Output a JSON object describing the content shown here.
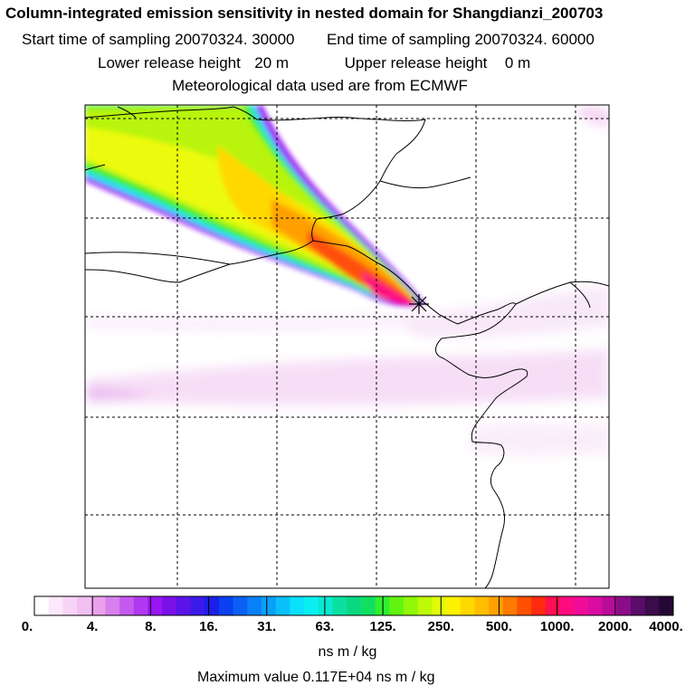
{
  "header": {
    "title": "Column-integrated emission sensitivity in nested domain for Shangdianzi_200703",
    "start_label": "Start time of sampling",
    "start_value": "20070324. 30000",
    "end_label": "End time of sampling",
    "end_value": "20070324. 60000",
    "lower_label": "Lower release height",
    "lower_value": "20 m",
    "upper_label": "Upper release height",
    "upper_value": "0 m",
    "met_line": "Meteorological data used are from ECMWF"
  },
  "colorbar": {
    "ticks": [
      "0.",
      "4.",
      "8.",
      "16.",
      "31.",
      "63.",
      "125.",
      "250.",
      "500.",
      "1000.",
      "2000.",
      "4000."
    ],
    "colors": [
      "#ffffff",
      "#fbe8fb",
      "#f7d4f7",
      "#f2bff2",
      "#eaa0ea",
      "#d880ee",
      "#c459f0",
      "#b038f2",
      "#9a14f4",
      "#7a10e8",
      "#5a14e8",
      "#3a1ae8",
      "#1a20e8",
      "#0a40f0",
      "#0a60f4",
      "#0a80f8",
      "#0aa0fa",
      "#0ac0fc",
      "#0ae0fc",
      "#0af0f0",
      "#0ae8d0",
      "#0ae0a0",
      "#0ad880",
      "#10e060",
      "#30ee30",
      "#60f410",
      "#90f808",
      "#c0fa08",
      "#e0fc08",
      "#fff200",
      "#ffd800",
      "#ffbf00",
      "#ffa000",
      "#ff7a00",
      "#ff5000",
      "#ff2a10",
      "#ff1050",
      "#ff0c80",
      "#f00c98",
      "#d80ca0",
      "#b80c9a",
      "#8a0c88",
      "#5a0c68",
      "#3a0c4a",
      "#240834"
    ],
    "units": "ns m / kg"
  },
  "max_line": "Maximum value  0.117E+04 ns m / kg",
  "colors": {
    "outline": "#000000",
    "receptor": "#000000"
  }
}
